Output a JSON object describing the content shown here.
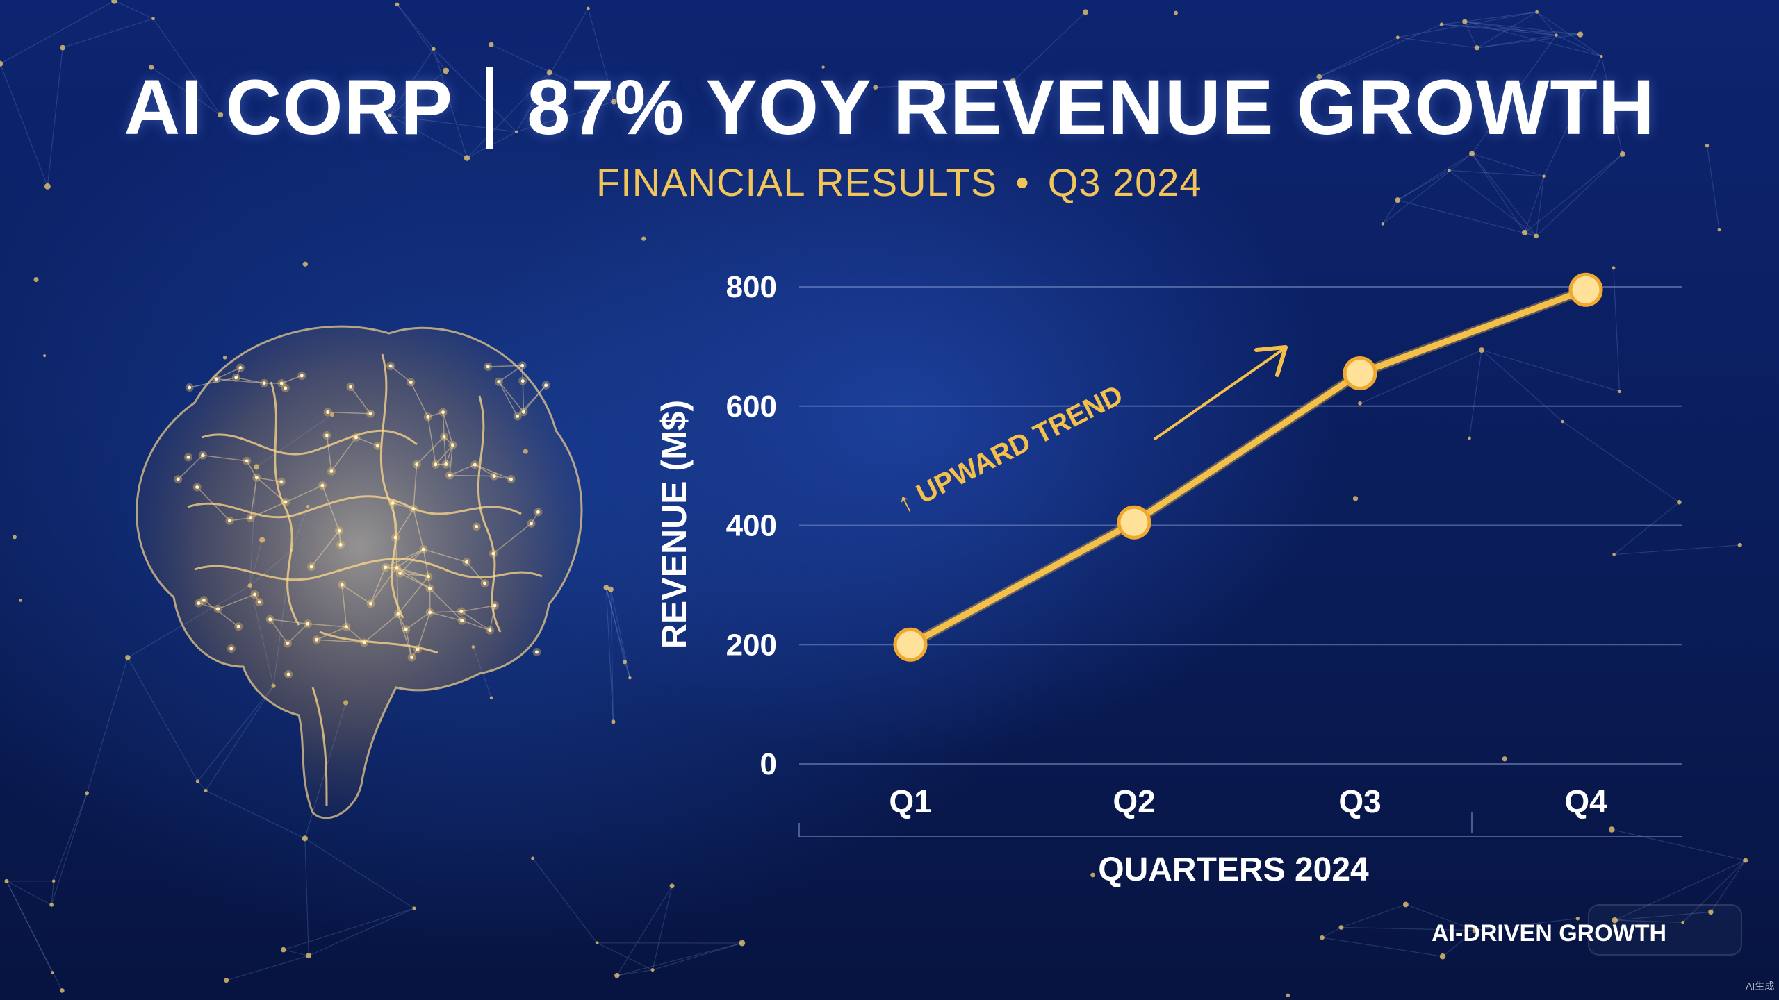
{
  "header": {
    "title_left": "AI CORP",
    "title_right": "87% YOY REVENUE GROWTH",
    "subtitle_left": "FINANCIAL RESULTS",
    "subtitle_sep": "•",
    "subtitle_right": "Q3 2024"
  },
  "footer": {
    "tag": "AI-DRIVEN GROWTH",
    "watermark": "AI生成"
  },
  "colors": {
    "accent": "#f5c04a",
    "text": "#ffffff",
    "grid": "#7f93c9"
  },
  "illustration": {
    "icon": "glowing-brain-network-icon"
  },
  "chart_data": {
    "type": "line",
    "categories": [
      "Q1",
      "Q2",
      "Q3",
      "Q4"
    ],
    "series": [
      {
        "values": [
          200,
          405,
          655,
          795
        ]
      }
    ],
    "title": "",
    "xlabel": "QUARTERS 2024",
    "ylabel": "REVENUE (M$)",
    "ylim": [
      0,
      800
    ],
    "yticks": [
      0,
      200,
      400,
      600,
      800
    ],
    "grid": true,
    "annotation": "UPWARD TREND"
  }
}
